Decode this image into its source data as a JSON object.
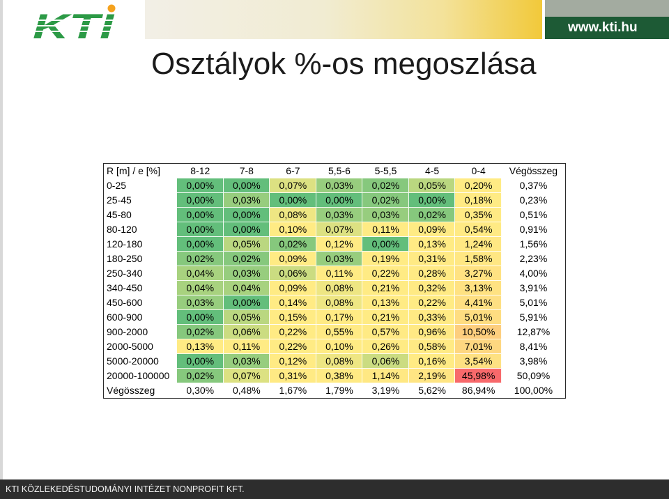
{
  "logo": {
    "text": "KTI"
  },
  "header": {
    "url": "www.kti.hu"
  },
  "title": "Osztályok %-os megoszlása",
  "table": {
    "columns": [
      "R [m] / e [%]",
      "8-12",
      "7-8",
      "6-7",
      "5,5-6",
      "5-5,5",
      "4-5",
      "0-4",
      "Végösszeg"
    ],
    "rows": [
      {
        "label": "0-25",
        "values": [
          "0,00%",
          "0,00%",
          "0,07%",
          "0,03%",
          "0,02%",
          "0,05%",
          "0,20%"
        ],
        "total": "0,37%"
      },
      {
        "label": "25-45",
        "values": [
          "0,00%",
          "0,03%",
          "0,00%",
          "0,00%",
          "0,02%",
          "0,00%",
          "0,18%"
        ],
        "total": "0,23%"
      },
      {
        "label": "45-80",
        "values": [
          "0,00%",
          "0,00%",
          "0,08%",
          "0,03%",
          "0,03%",
          "0,02%",
          "0,35%"
        ],
        "total": "0,51%"
      },
      {
        "label": "80-120",
        "values": [
          "0,00%",
          "0,00%",
          "0,10%",
          "0,07%",
          "0,11%",
          "0,09%",
          "0,54%"
        ],
        "total": "0,91%"
      },
      {
        "label": "120-180",
        "values": [
          "0,00%",
          "0,05%",
          "0,02%",
          "0,12%",
          "0,00%",
          "0,13%",
          "1,24%"
        ],
        "total": "1,56%"
      },
      {
        "label": "180-250",
        "values": [
          "0,02%",
          "0,02%",
          "0,09%",
          "0,03%",
          "0,19%",
          "0,31%",
          "1,58%"
        ],
        "total": "2,23%"
      },
      {
        "label": "250-340",
        "values": [
          "0,04%",
          "0,03%",
          "0,06%",
          "0,11%",
          "0,22%",
          "0,28%",
          "3,27%"
        ],
        "total": "4,00%"
      },
      {
        "label": "340-450",
        "values": [
          "0,04%",
          "0,04%",
          "0,09%",
          "0,08%",
          "0,21%",
          "0,32%",
          "3,13%"
        ],
        "total": "3,91%"
      },
      {
        "label": "450-600",
        "values": [
          "0,03%",
          "0,00%",
          "0,14%",
          "0,08%",
          "0,13%",
          "0,22%",
          "4,41%"
        ],
        "total": "5,01%"
      },
      {
        "label": "600-900",
        "values": [
          "0,00%",
          "0,05%",
          "0,15%",
          "0,17%",
          "0,21%",
          "0,33%",
          "5,01%"
        ],
        "total": "5,91%"
      },
      {
        "label": "900-2000",
        "values": [
          "0,02%",
          "0,06%",
          "0,22%",
          "0,55%",
          "0,57%",
          "0,96%",
          "10,50%"
        ],
        "total": "12,87%"
      },
      {
        "label": "2000-5000",
        "values": [
          "0,13%",
          "0,11%",
          "0,22%",
          "0,10%",
          "0,26%",
          "0,58%",
          "7,01%"
        ],
        "total": "8,41%"
      },
      {
        "label": "5000-20000",
        "values": [
          "0,00%",
          "0,03%",
          "0,12%",
          "0,08%",
          "0,06%",
          "0,16%",
          "3,54%"
        ],
        "total": "3,98%"
      },
      {
        "label": "20000-100000",
        "values": [
          "0,02%",
          "0,07%",
          "0,31%",
          "0,38%",
          "1,14%",
          "2,19%",
          "45,98%"
        ],
        "total": "50,09%"
      }
    ],
    "grand_total": {
      "label": "Végösszeg",
      "values": [
        "0,30%",
        "0,48%",
        "1,67%",
        "1,79%",
        "3,19%",
        "5,62%",
        "86,94%"
      ],
      "total": "100,00%"
    }
  },
  "heatmap_colors": {
    "min": "#63BE7B",
    "mid": "#FFEB84",
    "max": "#F8696B"
  },
  "theme": {
    "brand_green": "#2C9A46",
    "logo_dot": "#F5A21E",
    "url_box_top": "#A3ABA0",
    "url_box_green": "#1D5A35",
    "header_band_start": "#F2EFE6",
    "header_band_end": "#F2C93A",
    "title_text": "#1B1B1B",
    "footer_bg": "#2D2D2D",
    "footer_text": "#F2F2F2"
  },
  "footer": {
    "text": "KTI KÖZLEKEDÉSTUDOMÁNYI INTÉZET NONPROFIT KFT."
  }
}
